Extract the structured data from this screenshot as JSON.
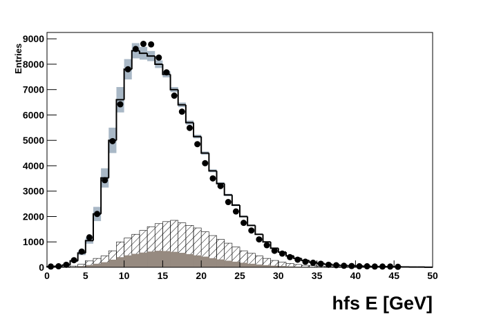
{
  "chart_data": {
    "type": "histogram",
    "x_label": "hfs E [GeV]",
    "y_label": "Entries",
    "bins": [
      0,
      1,
      2,
      3,
      4,
      5,
      6,
      7,
      8,
      9,
      10,
      11,
      12,
      13,
      14,
      15,
      16,
      17,
      18,
      19,
      20,
      21,
      22,
      23,
      24,
      25,
      26,
      27,
      28,
      29,
      30,
      31,
      32,
      33,
      34,
      35,
      36,
      37,
      38,
      39,
      40,
      41,
      42,
      43,
      44,
      45,
      46,
      47,
      48,
      49,
      50
    ],
    "xlim": [
      0,
      50
    ],
    "xticks": [
      0,
      5,
      10,
      15,
      20,
      25,
      30,
      35,
      40,
      45,
      50
    ],
    "ylim": [
      0,
      9250
    ],
    "yticks": [
      0,
      1000,
      2000,
      3000,
      4000,
      5000,
      6000,
      7000,
      8000,
      9000
    ],
    "series": [
      {
        "style": "hatched",
        "color": "#000000",
        "values": [
          0,
          5,
          20,
          50,
          120,
          250,
          350,
          450,
          650,
          1000,
          1150,
          1300,
          1450,
          1600,
          1720,
          1800,
          1850,
          1750,
          1650,
          1550,
          1400,
          1250,
          1100,
          950,
          800,
          650,
          550,
          450,
          350,
          270,
          200,
          150,
          110,
          80,
          60,
          40,
          30,
          20,
          15,
          10,
          5,
          5,
          5,
          5,
          5,
          5,
          5,
          5,
          5,
          5
        ]
      },
      {
        "style": "filled",
        "color": "#968a80",
        "values": [
          0,
          0,
          5,
          20,
          50,
          90,
          140,
          200,
          300,
          400,
          470,
          530,
          580,
          620,
          650,
          640,
          610,
          570,
          520,
          470,
          420,
          360,
          310,
          260,
          220,
          180,
          140,
          110,
          85,
          65,
          50,
          35,
          25,
          20,
          15,
          10,
          8,
          6,
          4,
          3,
          2,
          2,
          2,
          2,
          2,
          2,
          2,
          2,
          2,
          2
        ]
      },
      {
        "style": "step",
        "color": "#000000",
        "error_color": "#a9b8c6",
        "values": [
          20,
          40,
          90,
          250,
          560,
          1050,
          2100,
          3520,
          5000,
          6600,
          7800,
          8530,
          8430,
          8320,
          8000,
          7600,
          7000,
          6400,
          5700,
          5150,
          4500,
          3800,
          3300,
          2850,
          2450,
          2000,
          1650,
          1300,
          1000,
          750,
          600,
          450,
          350,
          270,
          200,
          150,
          120,
          90,
          70,
          60,
          50,
          40,
          30,
          30,
          25,
          20,
          15,
          10,
          10,
          5
        ],
        "errors": [
          5,
          10,
          20,
          40,
          80,
          120,
          280,
          380,
          500,
          500,
          400,
          300,
          250,
          200,
          150,
          120,
          100,
          90,
          80,
          70,
          60,
          55,
          50,
          45,
          40,
          35,
          30,
          25,
          20,
          15,
          12,
          10,
          8,
          6,
          5,
          4,
          3,
          3,
          2,
          2,
          2,
          2,
          2,
          2,
          2,
          2,
          2,
          2,
          2,
          2
        ]
      },
      {
        "style": "points",
        "color": "#000000",
        "values": [
          30,
          40,
          100,
          280,
          620,
          1180,
          2100,
          3430,
          4970,
          6420,
          7800,
          8600,
          8800,
          8780,
          8260,
          7680,
          6760,
          6130,
          5490,
          4850,
          4100,
          3500,
          3200,
          2570,
          2200,
          1750,
          1450,
          1100,
          870,
          650,
          540,
          400,
          300,
          220,
          180,
          140,
          100,
          80,
          60,
          50,
          40,
          40,
          30,
          30,
          30,
          20,
          null,
          null,
          null,
          null
        ]
      }
    ]
  }
}
